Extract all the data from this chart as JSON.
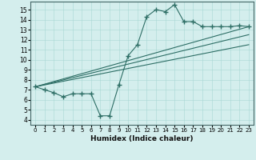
{
  "title": "",
  "xlabel": "Humidex (Indice chaleur)",
  "bg_color": "#d4eeed",
  "line_color": "#2d6e65",
  "xlim": [
    -0.5,
    23.5
  ],
  "ylim": [
    3.5,
    15.8
  ],
  "yticks": [
    4,
    5,
    6,
    7,
    8,
    9,
    10,
    11,
    12,
    13,
    14,
    15
  ],
  "xticks": [
    0,
    1,
    2,
    3,
    4,
    5,
    6,
    7,
    8,
    9,
    10,
    11,
    12,
    13,
    14,
    15,
    16,
    17,
    18,
    19,
    20,
    21,
    22,
    23
  ],
  "main_x": [
    0,
    1,
    2,
    3,
    4,
    5,
    6,
    7,
    8,
    9,
    10,
    11,
    12,
    13,
    14,
    15,
    16,
    17,
    18,
    19,
    20,
    21,
    22,
    23
  ],
  "main_y": [
    7.3,
    7.0,
    6.7,
    6.3,
    6.6,
    6.6,
    6.6,
    4.4,
    4.4,
    7.5,
    10.4,
    11.5,
    14.3,
    15.0,
    14.8,
    15.5,
    13.8,
    13.8,
    13.3,
    13.3,
    13.3,
    13.3,
    13.4,
    13.3
  ],
  "line2_x": [
    0,
    23
  ],
  "line2_y": [
    7.3,
    13.3
  ],
  "line3_x": [
    0,
    23
  ],
  "line3_y": [
    7.3,
    11.5
  ],
  "line4_x": [
    0,
    23
  ],
  "line4_y": [
    7.3,
    12.5
  ]
}
